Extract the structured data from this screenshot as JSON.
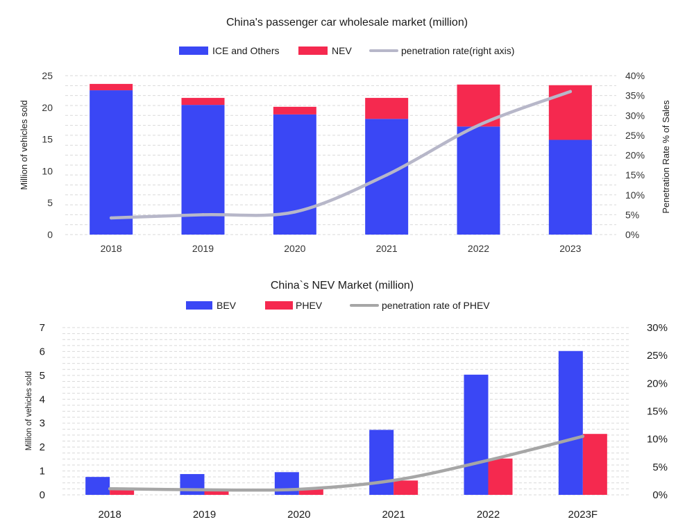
{
  "colors": {
    "blue": "#3a47f5",
    "red": "#f5294f",
    "line_top": "#b7b7c9",
    "line_bottom": "#a6a6a6",
    "grid": "#d9d9d9"
  },
  "chart_data": [
    {
      "type": "bar",
      "stacked": true,
      "title": "China's passenger car wholesale market (million)",
      "categories": [
        "2018",
        "2019",
        "2020",
        "2021",
        "2022",
        "2023"
      ],
      "series": [
        {
          "name": "ICE and Others",
          "type": "bar",
          "color": "#3a47f5",
          "values": [
            22.7,
            20.4,
            18.9,
            18.2,
            17.0,
            14.9
          ]
        },
        {
          "name": "NEV",
          "type": "bar",
          "color": "#f5294f",
          "values": [
            1.0,
            1.1,
            1.2,
            3.3,
            6.6,
            8.6
          ]
        },
        {
          "name": "penetration rate(right axis)",
          "type": "line",
          "axis": "right",
          "color": "#b7b7c9",
          "values": [
            0.042,
            0.05,
            0.057,
            0.15,
            0.275,
            0.36
          ]
        }
      ],
      "ylabel": "Million of vehicles sold",
      "ylabel_right": "Penetration Rate % of Sales",
      "ylim": [
        0,
        25
      ],
      "yticks": [
        "0",
        "5",
        "10",
        "15",
        "20",
        "25"
      ],
      "ylim_right": [
        0,
        0.4
      ],
      "yticks_right": [
        "0%",
        "5%",
        "10%",
        "15%",
        "20%",
        "25%",
        "30%",
        "35%",
        "40%"
      ],
      "grid": true,
      "legend_position": "top-center"
    },
    {
      "type": "bar",
      "stacked": false,
      "title": "China`s NEV Market (million)",
      "categories": [
        "2018",
        "2019",
        "2020",
        "2021",
        "2022",
        "2023F"
      ],
      "series": [
        {
          "name": "BEV",
          "type": "bar",
          "color": "#3a47f5",
          "values": [
            0.75,
            0.87,
            0.95,
            2.72,
            5.03,
            6.02
          ]
        },
        {
          "name": "PHEV",
          "type": "bar",
          "color": "#f5294f",
          "values": [
            0.25,
            0.23,
            0.27,
            0.6,
            1.52,
            2.55
          ]
        },
        {
          "name": "penetration rate of PHEV",
          "type": "line",
          "axis": "right",
          "color": "#a6a6a6",
          "values": [
            0.011,
            0.009,
            0.01,
            0.026,
            0.062,
            0.105
          ]
        }
      ],
      "ylabel": "Million of vehicles sold",
      "ylim": [
        0,
        7
      ],
      "yticks": [
        "0",
        "1",
        "2",
        "3",
        "4",
        "5",
        "6",
        "7"
      ],
      "ylim_right": [
        0,
        0.3
      ],
      "yticks_right": [
        "0%",
        "5%",
        "10%",
        "15%",
        "20%",
        "25%",
        "30%"
      ],
      "grid": true,
      "legend_position": "top-center"
    }
  ]
}
